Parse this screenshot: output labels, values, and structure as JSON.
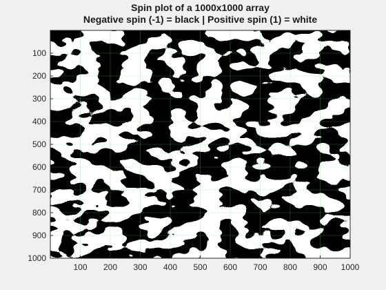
{
  "chart_data": {
    "type": "heatmap",
    "title_lines": [
      "Spin plot of a 1000x1000 array",
      "Negative spin (-1) = black | Positive spin (1) = white"
    ],
    "xlabel": "",
    "ylabel": "",
    "xlim": [
      0,
      1000
    ],
    "ylim": [
      1000,
      0
    ],
    "x_ticks": [
      100,
      200,
      300,
      400,
      500,
      600,
      700,
      800,
      900,
      1000
    ],
    "y_ticks": [
      100,
      200,
      300,
      400,
      500,
      600,
      700,
      800,
      900,
      1000
    ],
    "grid": true,
    "colormap": {
      "-1": "#000000",
      "1": "#ffffff"
    },
    "array_size": [
      1000,
      1000
    ],
    "values": [
      -1,
      1
    ]
  },
  "colors": {
    "background": "#f0f0f0",
    "axis": "#262626",
    "grid": "#7fd07f",
    "negative_spin": "#000000",
    "positive_spin": "#ffffff"
  }
}
